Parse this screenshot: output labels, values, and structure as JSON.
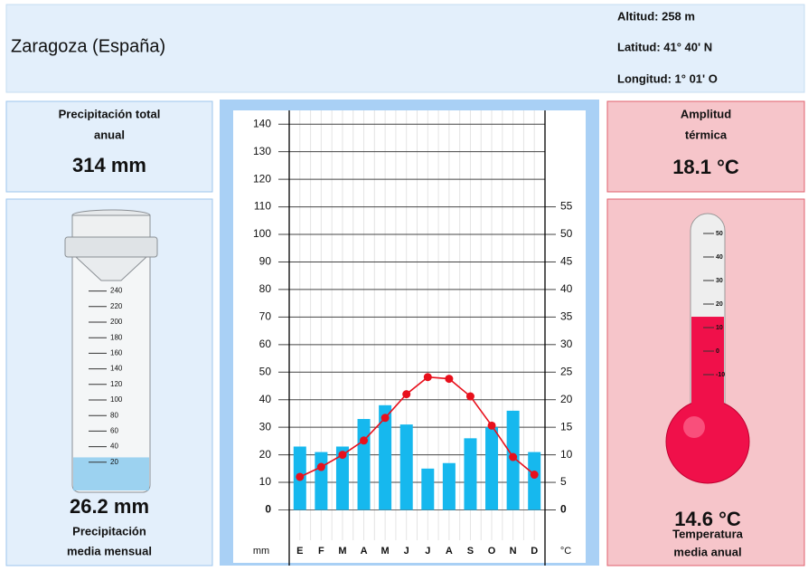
{
  "header": {
    "title": "Zaragoza (España)",
    "info": [
      "Altitud: 258 m",
      "Latitud: 41° 40' N",
      "Longitud:  1° 01' O"
    ]
  },
  "precipitation_total": {
    "label": [
      "Precipitación total",
      "anual"
    ],
    "value": "314 mm"
  },
  "precipitation_gauge": {
    "value": 26.2,
    "value_label": "26.2 mm",
    "label": [
      "Precipitación",
      "media mensual"
    ],
    "ticks": [
      20,
      40,
      60,
      80,
      100,
      120,
      140,
      160,
      180,
      200,
      220,
      240
    ]
  },
  "thermal_amplitude": {
    "label": [
      "Amplitud",
      "térmica"
    ],
    "value": "18.1 °C"
  },
  "thermometer": {
    "value": 14.6,
    "value_label": "14.6 °C",
    "label": [
      "Temperatura",
      "media anual"
    ],
    "ticks": [
      -10,
      0,
      10,
      20,
      30,
      40,
      50
    ]
  },
  "chart_data": {
    "type": "bar",
    "categories": [
      "E",
      "F",
      "M",
      "A",
      "M",
      "J",
      "J",
      "A",
      "S",
      "O",
      "N",
      "D"
    ],
    "series": [
      {
        "type": "bar",
        "color": "#16b8ee",
        "values": [
          23,
          21,
          23,
          33,
          38,
          31,
          15,
          17,
          26,
          30,
          36,
          21
        ]
      },
      {
        "type": "line",
        "axis": "y2",
        "color": "#e8101c",
        "values": [
          6.0,
          7.8,
          10.0,
          12.6,
          16.7,
          21.0,
          24.1,
          23.8,
          20.6,
          15.3,
          9.6,
          6.4
        ]
      }
    ],
    "ylim": [
      -11,
      145
    ],
    "yticks": [
      0,
      10,
      20,
      30,
      40,
      50,
      60,
      70,
      80,
      90,
      100,
      110,
      120,
      130,
      140
    ],
    "y2lim": [
      -5.5,
      72.5
    ],
    "y2ticks": [
      0,
      5,
      10,
      15,
      20,
      25,
      30,
      35,
      40,
      45,
      50,
      55
    ],
    "y_label": "mm",
    "y2_label": "°C",
    "grid": true
  }
}
